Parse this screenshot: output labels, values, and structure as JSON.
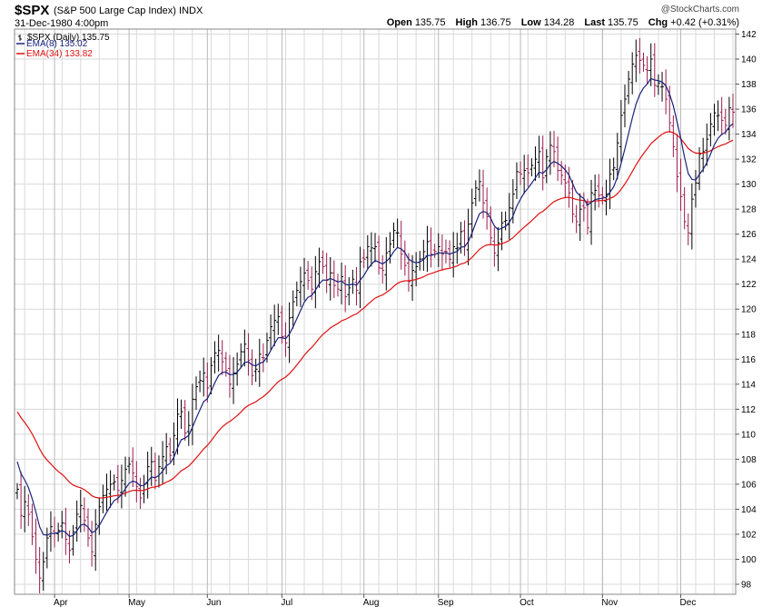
{
  "header": {
    "symbol": "$SPX",
    "name": "(S&P 500 Large Cap Index)",
    "exchange": "INDX",
    "datetime": "31-Dec-1980 4:00pm",
    "watermark": "@StockCharts.com",
    "quote": {
      "open_label": "Open",
      "open": "135.75",
      "high_label": "High",
      "high": "136.75",
      "low_label": "Low",
      "low": "134.28",
      "last_label": "Last",
      "last": "135.75",
      "chg_label": "Chg",
      "chg": "+0.42 (+0.31%)"
    }
  },
  "legend": {
    "price_label": "$SPX (Daily) 135.75",
    "ema8_label": "EMA(8) 135.02",
    "ema34_label": "EMA(34) 133.82"
  },
  "colors": {
    "ema8": "#1a237e",
    "ema34": "#e01010",
    "up": "#000000",
    "down": "#9c1b4e",
    "grid": "#dadada",
    "frame": "#888888"
  },
  "chart_data": {
    "type": "line",
    "title": "$SPX (S&P 500 Large Cap Index) INDX",
    "xlabel": "",
    "ylabel": "",
    "ylim": [
      97.2,
      142.4
    ],
    "yticks": [
      98,
      100,
      102,
      104,
      106,
      108,
      110,
      112,
      114,
      116,
      118,
      120,
      122,
      124,
      126,
      128,
      130,
      132,
      134,
      136,
      138,
      140,
      142
    ],
    "month_labels": [
      "Apr",
      "May",
      "Jun",
      "Jul",
      "Aug",
      "Sep",
      "Oct",
      "Nov",
      "Dec"
    ],
    "month_start_index": [
      10,
      30,
      51,
      71,
      93,
      113,
      135,
      157,
      178
    ],
    "ema_series": [
      {
        "name": "EMA(8)",
        "start_value": 107.8,
        "end_value": 135.02
      },
      {
        "name": "EMA(34)",
        "start_value": 111.8,
        "end_value": 133.82
      }
    ],
    "closes": [
      105.6,
      103.5,
      104.6,
      103.6,
      101.8,
      100.0,
      98.5,
      99.8,
      101.7,
      102.6,
      102.1,
      102.3,
      102.9,
      101.6,
      100.7,
      102.2,
      103.6,
      104.3,
      103.1,
      101.7,
      100.6,
      102.8,
      104.2,
      105.1,
      105.6,
      106.0,
      106.2,
      105.5,
      106.3,
      107.2,
      107.6,
      106.9,
      105.8,
      104.9,
      106.0,
      107.4,
      107.8,
      106.3,
      107.4,
      108.2,
      109.0,
      108.3,
      109.9,
      111.6,
      111.8,
      110.1,
      110.7,
      112.8,
      113.8,
      114.3,
      114.9,
      113.7,
      115.5,
      116.5,
      116.7,
      115.8,
      115.1,
      114.0,
      114.9,
      115.6,
      116.6,
      117.2,
      115.9,
      114.7,
      115.2,
      116.4,
      116.1,
      117.5,
      118.6,
      119.1,
      119.4,
      117.8,
      117.3,
      119.3,
      120.6,
      121.5,
      122.2,
      122.9,
      122.3,
      121.6,
      123.0,
      123.8,
      123.4,
      122.3,
      122.9,
      121.9,
      121.6,
      122.6,
      121.0,
      121.7,
      122.4,
      121.5,
      123.8,
      124.0,
      125.0,
      124.9,
      125.0,
      123.3,
      123.1,
      124.5,
      125.2,
      126.3,
      126.1,
      124.4,
      123.5,
      122.2,
      123.1,
      123.4,
      124.0,
      124.6,
      125.4,
      124.4,
      124.6,
      125.0,
      124.4,
      124.6,
      124.0,
      125.0,
      124.9,
      126.2,
      125.1,
      126.8,
      128.5,
      129.7,
      130.2,
      128.5,
      127.4,
      125.7,
      124.5,
      125.3,
      126.9,
      127.1,
      128.1,
      129.2,
      131.0,
      130.8,
      131.1,
      130.9,
      131.5,
      132.0,
      132.6,
      130.5,
      132.2,
      133.1,
      132.6,
      131.1,
      130.7,
      130.1,
      129.3,
      127.6,
      127.0,
      128.0,
      128.1,
      126.5,
      129.3,
      129.5,
      129.1,
      129.0,
      129.2,
      130.8,
      131.3,
      133.3,
      135.5,
      136.8,
      138.4,
      139.6,
      140.3,
      139.9,
      139.5,
      139.1,
      140.0,
      137.9,
      138.1,
      137.8,
      136.8,
      134.9,
      133.0,
      130.6,
      129.0,
      127.0,
      126.1,
      128.8,
      130.1,
      132.4,
      132.6,
      133.6,
      134.8,
      135.7,
      135.5,
      135.1,
      134.7,
      136.1,
      135.75
    ]
  }
}
